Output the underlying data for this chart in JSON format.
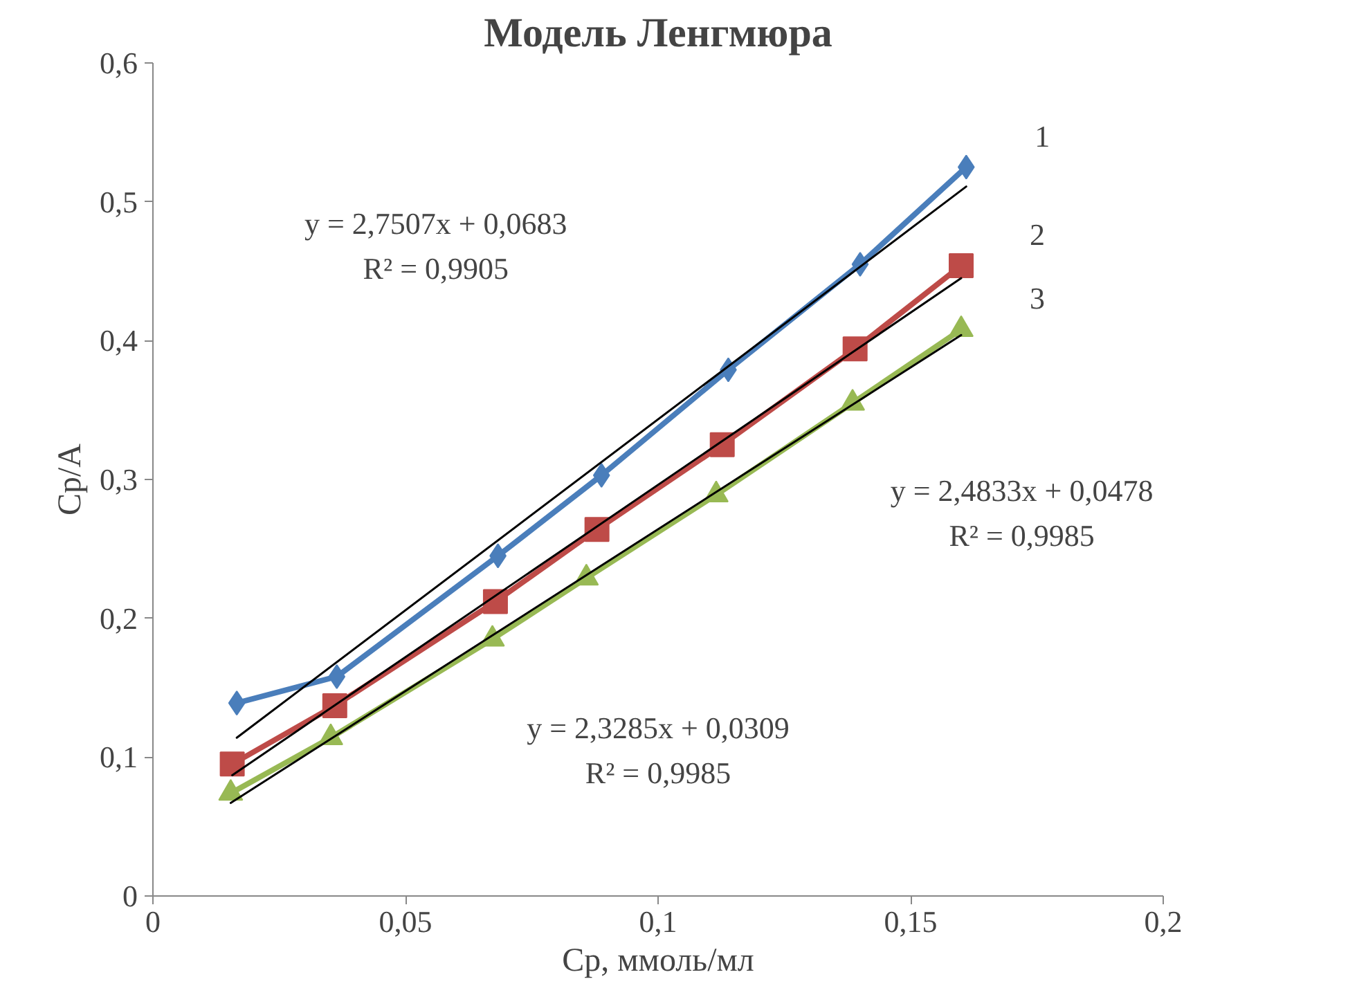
{
  "chart_data": {
    "type": "line",
    "title": "Модель Ленгмюра",
    "xlabel": "Ср, ммоль/мл",
    "ylabel": "Ср/А",
    "xlim": [
      0,
      0.2
    ],
    "ylim": [
      0,
      0.6
    ],
    "xticks": [
      0,
      {
        "value": 0.05,
        "label": "0,05"
      },
      {
        "value": 0.1,
        "label": "0,1"
      },
      {
        "value": 0.15,
        "label": "0,15"
      },
      {
        "value": 0.2,
        "label": "0,2"
      }
    ],
    "yticks": [
      0,
      {
        "value": 0.1,
        "label": "0,1"
      },
      {
        "value": 0.2,
        "label": "0,2"
      },
      {
        "value": 0.3,
        "label": "0,3"
      },
      {
        "value": 0.4,
        "label": "0,4"
      },
      {
        "value": 0.5,
        "label": "0,5"
      },
      {
        "value": 0.6,
        "label": "0,6"
      }
    ],
    "grid": false,
    "series": [
      {
        "name": "1",
        "color": "#4a7ebb",
        "marker": "diamond",
        "x": [
          0.0166,
          0.0364,
          0.0683,
          0.0888,
          0.1139,
          0.14,
          0.161
        ],
        "values": [
          0.139,
          0.158,
          0.245,
          0.303,
          0.379,
          0.455,
          0.525
        ]
      },
      {
        "name": "2",
        "color": "#be4b48",
        "marker": "square",
        "x": [
          0.0157,
          0.036,
          0.0678,
          0.0879,
          0.1127,
          0.139,
          0.16
        ],
        "values": [
          0.095,
          0.137,
          0.212,
          0.264,
          0.325,
          0.394,
          0.454
        ]
      },
      {
        "name": "3",
        "color": "#98b954",
        "marker": "triangle",
        "x": [
          0.0154,
          0.0352,
          0.0672,
          0.0858,
          0.1115,
          0.1385,
          0.16
        ],
        "values": [
          0.074,
          0.114,
          0.185,
          0.229,
          0.289,
          0.355,
          0.408
        ]
      },
      {
        "type": "line",
        "color": "#000000",
        "marker": "none",
        "x": [
          0.0166,
          0.161
        ],
        "values": [
          0.114,
          0.511
        ]
      },
      {
        "type": "line",
        "color": "#000000",
        "marker": "none",
        "x": [
          0.0157,
          0.16
        ],
        "values": [
          0.087,
          0.445
        ]
      },
      {
        "type": "line",
        "color": "#000000",
        "marker": "none",
        "x": [
          0.0154,
          0.16
        ],
        "values": [
          0.067,
          0.404
        ]
      }
    ],
    "annotations": [
      "y = 2,7507x + 0,0683\nR² = 0,9905",
      "y = 2,4833x + 0,0478\nR² = 0,9985",
      "y = 2,3285x + 0,0309\nR² = 0,9985"
    ]
  }
}
